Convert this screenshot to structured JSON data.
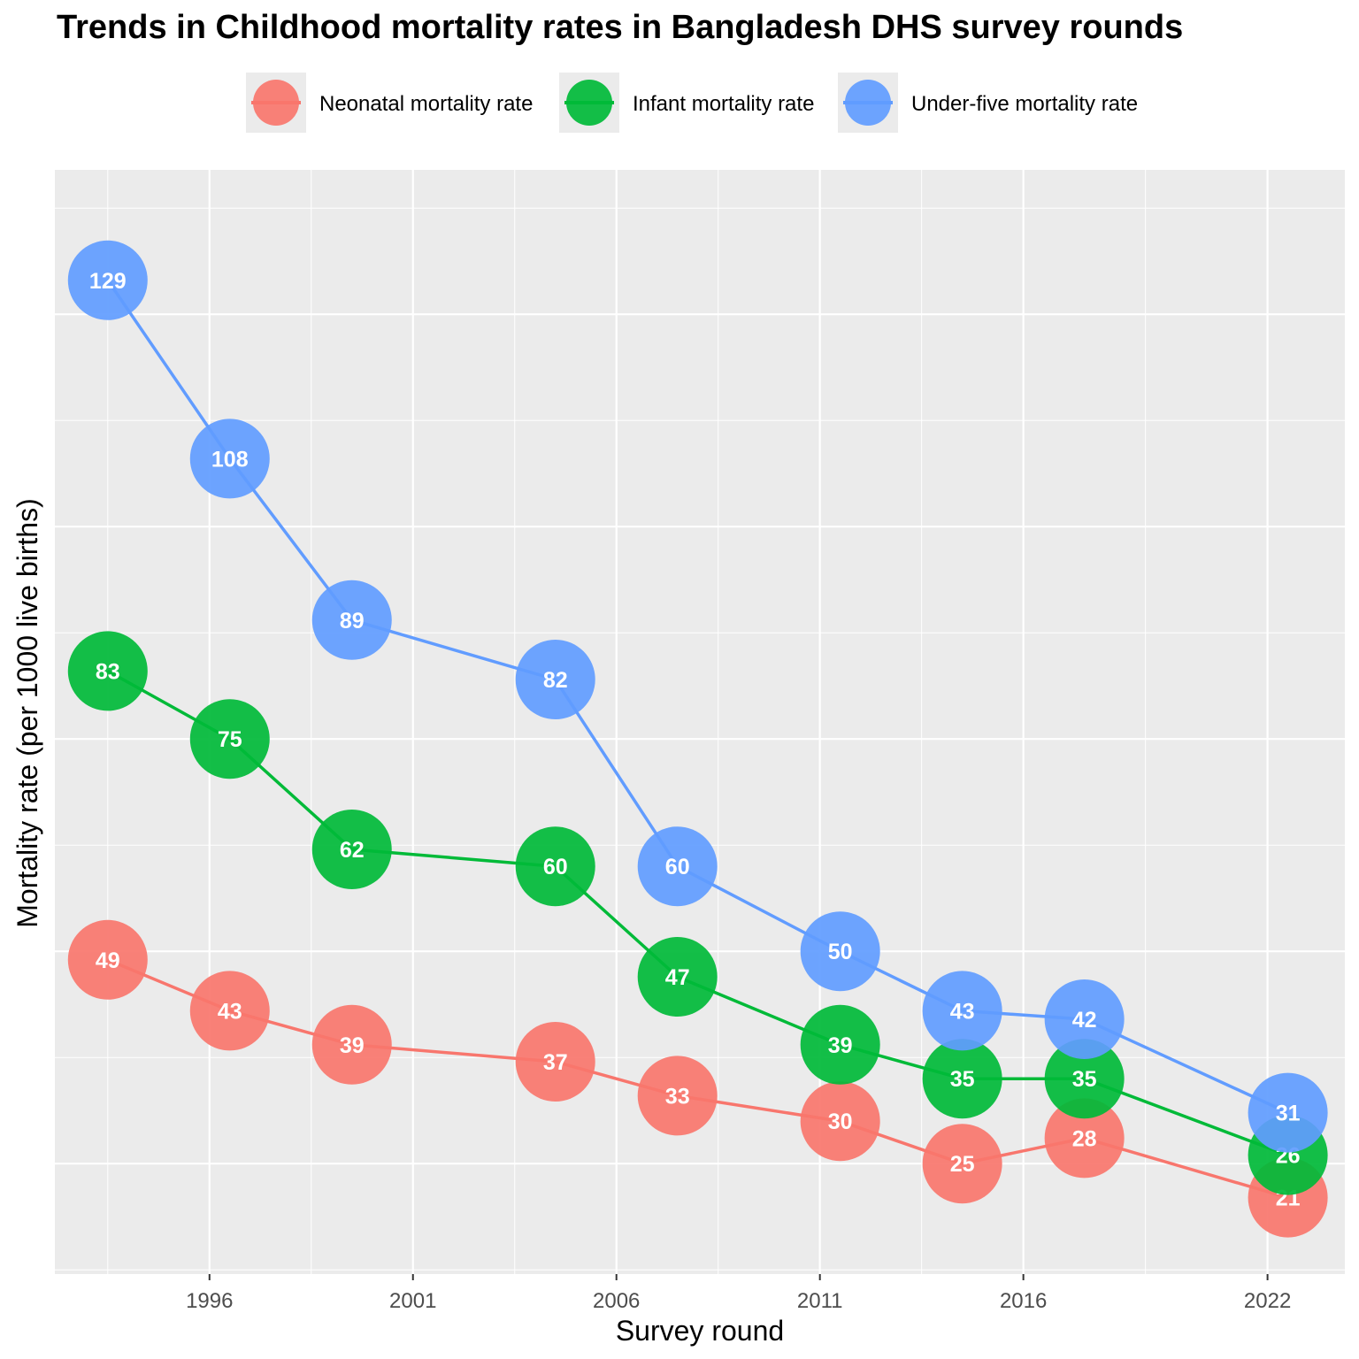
{
  "chart_data": {
    "type": "line",
    "title": "Trends in Childhood mortality rates in Bangladesh DHS survey rounds",
    "xlabel": "Survey round",
    "ylabel": "Mortality rate (per 1000 live births)",
    "x": [
      1993.5,
      1996.5,
      1999.5,
      2004.5,
      2007.5,
      2011.5,
      2014.5,
      2017.5,
      2022.5
    ],
    "xticks": [
      1996,
      2001,
      2006,
      2011,
      2016,
      2022
    ],
    "xlim": [
      1992.2,
      2023.9
    ],
    "ylim": [
      12,
      142
    ],
    "grid": true,
    "legend_position": "top",
    "series": [
      {
        "name": "Neonatal mortality rate",
        "color": "#F8766D",
        "values": [
          49,
          43,
          39,
          37,
          33,
          30,
          25,
          28,
          21
        ]
      },
      {
        "name": "Infant mortality rate",
        "color": "#00BA38",
        "values": [
          83,
          75,
          62,
          60,
          47,
          39,
          35,
          35,
          26
        ]
      },
      {
        "name": "Under-five mortality rate",
        "color": "#619CFF",
        "values": [
          129,
          108,
          89,
          82,
          60,
          50,
          43,
          42,
          31
        ]
      }
    ]
  }
}
